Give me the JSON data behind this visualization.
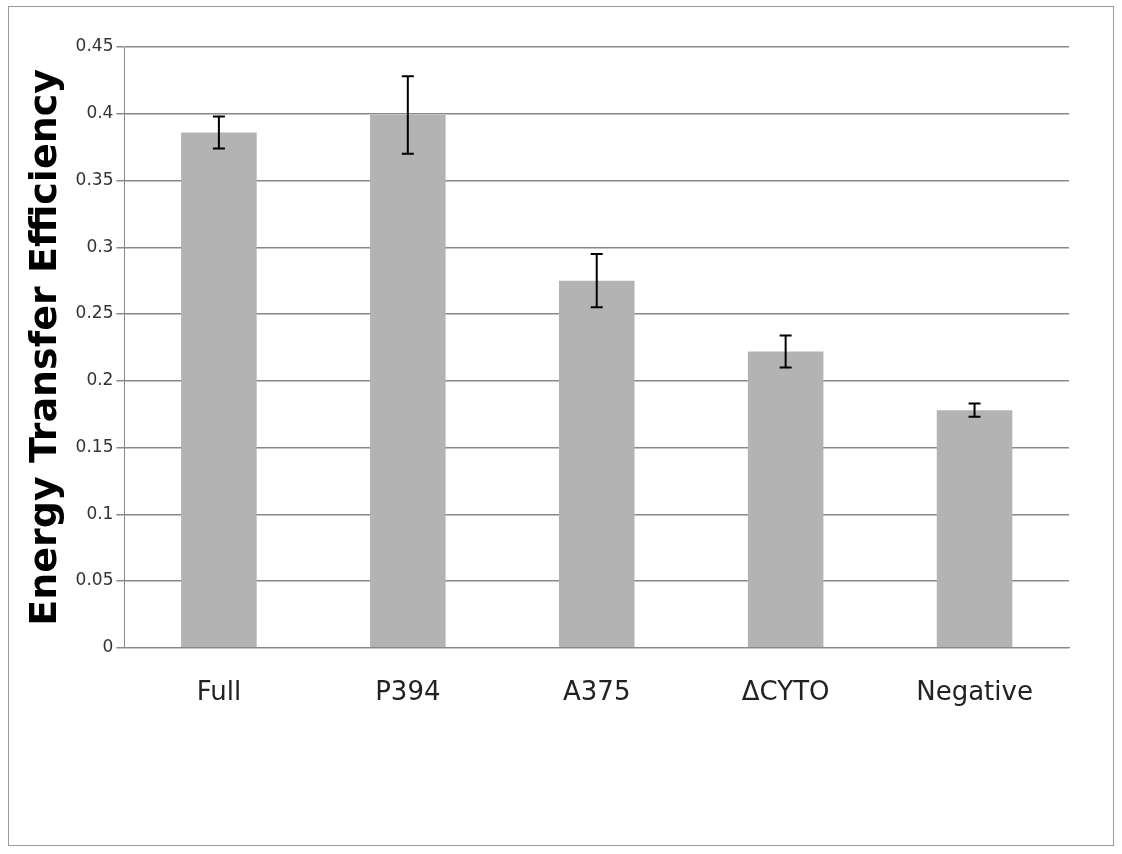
{
  "chart_data": {
    "type": "bar",
    "ylabel": "Energy Transfer Efficiency",
    "categories": [
      "Full",
      "P394",
      "A375",
      "ΔCYTO",
      "Negative"
    ],
    "values": [
      0.386,
      0.399,
      0.275,
      0.222,
      0.178
    ],
    "errors": [
      0.012,
      0.029,
      0.02,
      0.012,
      0.005
    ],
    "color": "#b3b3b3",
    "ylim": [
      0,
      0.45
    ],
    "yticks": [
      0,
      0.05,
      0.1,
      0.15,
      0.2,
      0.25,
      0.3,
      0.35,
      0.4,
      0.45
    ],
    "grid": "y",
    "legend": false
  }
}
